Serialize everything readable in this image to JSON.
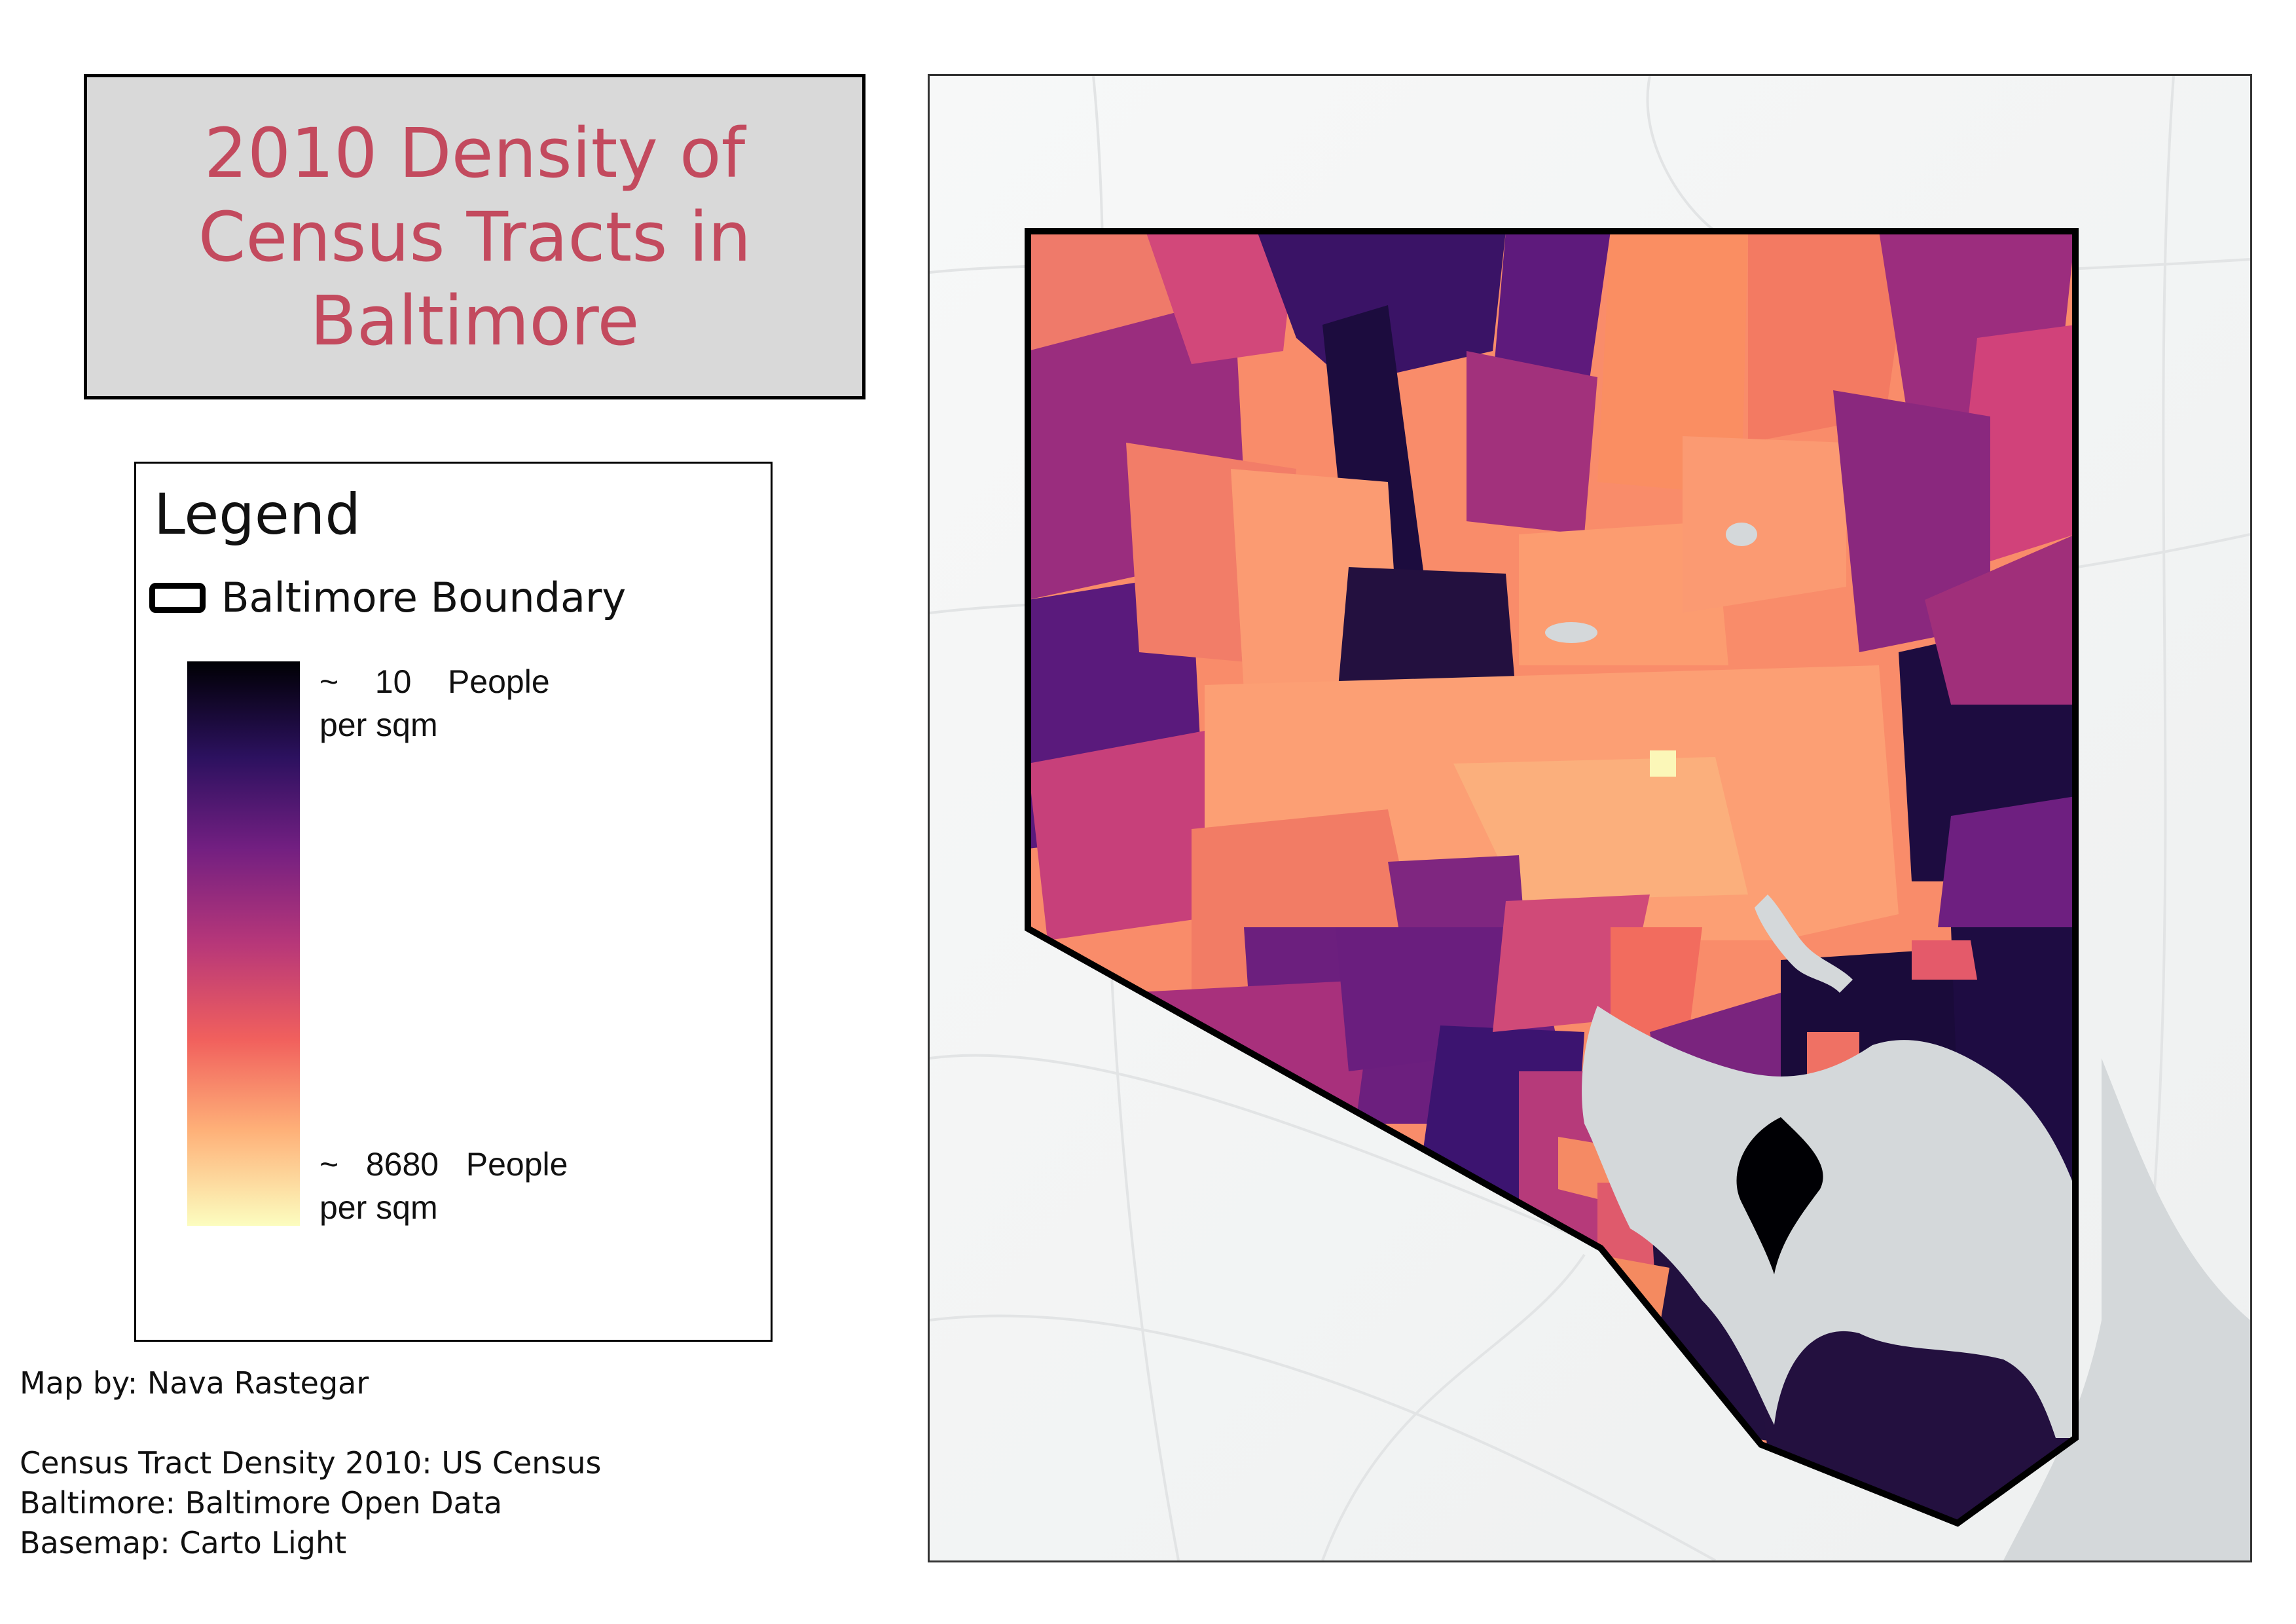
{
  "title": {
    "lines": [
      "2010 Density of",
      "Census Tracts in",
      "Baltimore"
    ],
    "color": "#c34a5e"
  },
  "legend": {
    "heading": "Legend",
    "boundary_label": "Baltimore Boundary",
    "ramp": {
      "colors": [
        "#000004",
        "#2c115f",
        "#721f81",
        "#b73779",
        "#f1605d",
        "#feb078",
        "#fcfdbf"
      ],
      "top_label": "~    10    People\nper sqm",
      "bottom_label": "~   8680   People\nper sqm",
      "min_value": 10,
      "max_value": 8680
    }
  },
  "credits": {
    "author": "Map by: Nava Rastegar",
    "sources": [
      "Census Tract Density 2010: US Census",
      "Baltimore: Baltimore Open Data",
      "Basemap: Carto Light"
    ]
  },
  "map": {
    "basemap_color": "#f4f5f5",
    "water_color": "#d4d8da",
    "boundary_color": "#000000"
  }
}
